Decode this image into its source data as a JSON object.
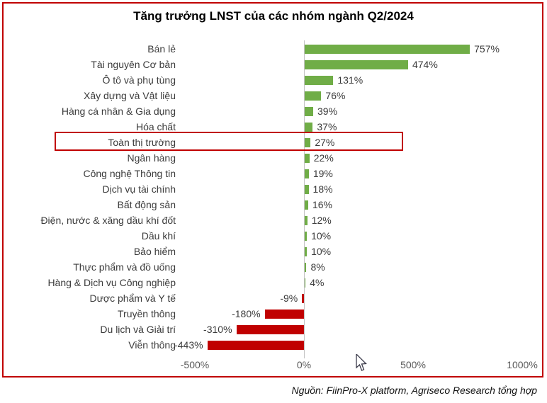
{
  "title": "Tăng trưởng LNST của các nhóm ngành Q2/2024",
  "source": "Nguồn: FiinPro-X platform, Agriseco Research tổng hợp",
  "colors": {
    "positive_bar": "#70AD47",
    "negative_bar": "#C00000",
    "frame_border": "#C00000",
    "highlight_border": "#C00000",
    "axis_line": "#c3c3c3",
    "tick_text": "#595959",
    "label_text": "#3b3b3b"
  },
  "chart_data": {
    "type": "bar",
    "orientation": "horizontal",
    "title": "Tăng trưởng LNST của các nhóm ngành Q2/2024",
    "categories": [
      "Bán lẻ",
      "Tài nguyên Cơ bản",
      "Ô tô và phụ tùng",
      "Xây dựng và Vật liệu",
      "Hàng cá nhân & Gia dụng",
      "Hóa chất",
      "Toàn thị trường",
      "Ngân hàng",
      "Công nghệ Thông tin",
      "Dịch vụ tài chính",
      "Bất động sản",
      "Điện, nước & xăng dầu khí đốt",
      "Dầu khí",
      "Bảo hiểm",
      "Thực phẩm và đồ uống",
      "Hàng & Dịch vụ Công nghiệp",
      "Dược phẩm và Y tế",
      "Truyền thông",
      "Du lịch và Giải trí",
      "Viễn thông"
    ],
    "values": [
      757,
      474,
      131,
      76,
      39,
      37,
      27,
      22,
      19,
      18,
      16,
      12,
      10,
      10,
      8,
      4,
      -9,
      -180,
      -310,
      -443
    ],
    "data_labels": [
      "757%",
      "474%",
      "131%",
      "76%",
      "39%",
      "37%",
      "27%",
      "22%",
      "19%",
      "18%",
      "16%",
      "12%",
      "10%",
      "10%",
      "8%",
      "4%",
      "-9%",
      "-180%",
      "-310%",
      "-443%"
    ],
    "highlighted_category": "Toàn thị trường",
    "xlim": [
      -550,
      1100
    ],
    "x_ticks": [
      {
        "value": -500,
        "label": "-500%"
      },
      {
        "value": 0,
        "label": "0%"
      },
      {
        "value": 500,
        "label": "500%"
      },
      {
        "value": 1000,
        "label": "1000%"
      }
    ],
    "grid": false,
    "legend": false,
    "unit": "%"
  }
}
